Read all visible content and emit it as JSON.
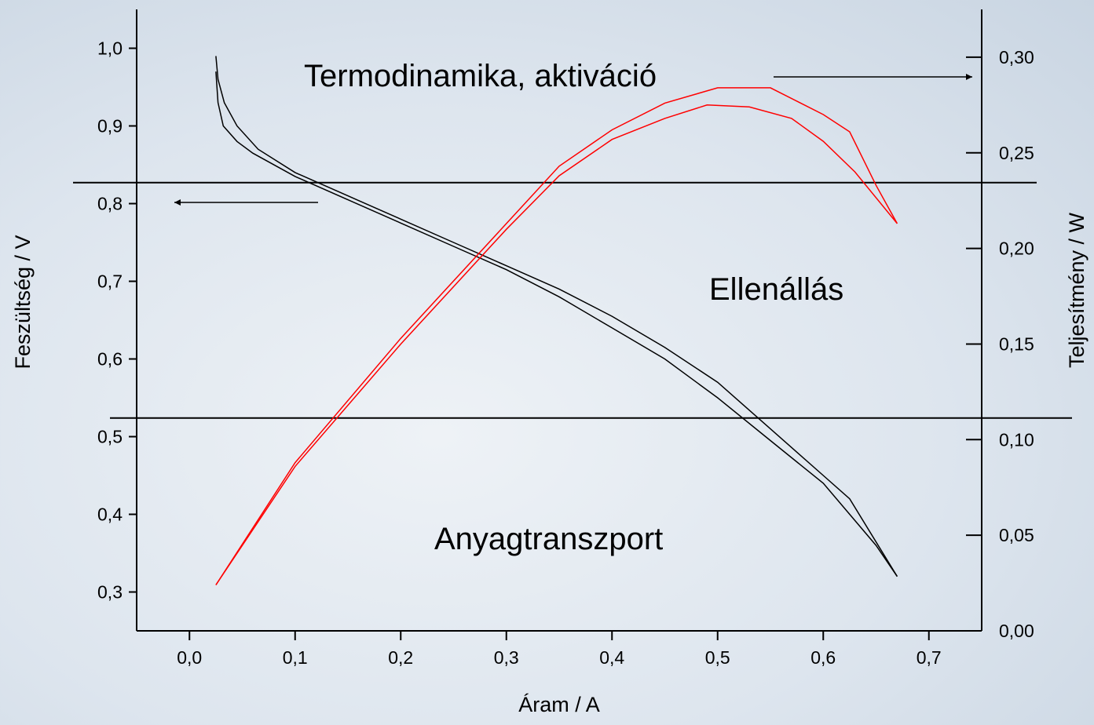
{
  "chart_data": {
    "type": "line",
    "xlabel": "Áram / A",
    "ylabel": "Feszültség / V",
    "y2label": "Teljesítmény / W",
    "xlim": [
      -0.05,
      0.75
    ],
    "ylim": [
      0.25,
      1.05
    ],
    "y2lim": [
      0,
      0.325
    ],
    "xticks": [
      {
        "value": 0.0,
        "label": "0,0"
      },
      {
        "value": 0.1,
        "label": "0,1"
      },
      {
        "value": 0.2,
        "label": "0,2"
      },
      {
        "value": 0.3,
        "label": "0,3"
      },
      {
        "value": 0.4,
        "label": "0,4"
      },
      {
        "value": 0.5,
        "label": "0,5"
      },
      {
        "value": 0.6,
        "label": "0,6"
      },
      {
        "value": 0.7,
        "label": "0,7"
      }
    ],
    "yticks": [
      {
        "value": 0.3,
        "label": "0,3"
      },
      {
        "value": 0.4,
        "label": "0,4"
      },
      {
        "value": 0.5,
        "label": "0,5"
      },
      {
        "value": 0.6,
        "label": "0,6"
      },
      {
        "value": 0.7,
        "label": "0,7"
      },
      {
        "value": 0.8,
        "label": "0,8"
      },
      {
        "value": 0.9,
        "label": "0,9"
      },
      {
        "value": 1.0,
        "label": "1,0"
      }
    ],
    "y2ticks": [
      {
        "value": 0.0,
        "label": "0,00"
      },
      {
        "value": 0.05,
        "label": "0,05"
      },
      {
        "value": 0.1,
        "label": "0,10"
      },
      {
        "value": 0.15,
        "label": "0,15"
      },
      {
        "value": 0.2,
        "label": "0,20"
      },
      {
        "value": 0.25,
        "label": "0,25"
      },
      {
        "value": 0.3,
        "label": "0,30"
      }
    ],
    "series": [
      {
        "color": "#000000",
        "x": [
          0.025,
          0.027,
          0.033,
          0.045,
          0.065,
          0.1,
          0.15,
          0.2,
          0.25,
          0.3,
          0.35,
          0.4,
          0.45,
          0.5,
          0.55,
          0.6,
          0.625,
          0.67
        ],
        "values": [
          0.99,
          0.96,
          0.93,
          0.9,
          0.87,
          0.84,
          0.81,
          0.78,
          0.75,
          0.72,
          0.69,
          0.655,
          0.615,
          0.57,
          0.51,
          0.45,
          0.42,
          0.32
        ]
      },
      {
        "color": "#000000",
        "x": [
          0.025,
          0.027,
          0.032,
          0.045,
          0.06,
          0.1,
          0.15,
          0.2,
          0.25,
          0.3,
          0.35,
          0.4,
          0.45,
          0.5,
          0.55,
          0.6,
          0.65,
          0.67
        ],
        "values": [
          0.97,
          0.93,
          0.9,
          0.88,
          0.865,
          0.835,
          0.805,
          0.775,
          0.745,
          0.715,
          0.68,
          0.64,
          0.6,
          0.55,
          0.495,
          0.44,
          0.36,
          0.32
        ]
      },
      {
        "color": "#ff0000",
        "axis": "y2",
        "x": [
          0.025,
          0.1,
          0.2,
          0.3,
          0.35,
          0.4,
          0.45,
          0.5,
          0.55,
          0.6,
          0.625,
          0.65,
          0.67
        ],
        "values": [
          0.024,
          0.088,
          0.153,
          0.213,
          0.243,
          0.262,
          0.276,
          0.284,
          0.284,
          0.27,
          0.261,
          0.233,
          0.213
        ]
      },
      {
        "color": "#ff0000",
        "axis": "y2",
        "x": [
          0.025,
          0.1,
          0.2,
          0.3,
          0.35,
          0.4,
          0.45,
          0.49,
          0.53,
          0.57,
          0.6,
          0.63,
          0.67
        ],
        "values": [
          0.024,
          0.086,
          0.15,
          0.21,
          0.238,
          0.257,
          0.268,
          0.275,
          0.274,
          0.268,
          0.256,
          0.24,
          0.213
        ]
      }
    ],
    "reference_lines": [
      0.827,
      0.524
    ],
    "annotations": [
      "Termodinamika, aktiváció",
      "Ellenállás",
      "Anyagtranszport"
    ]
  }
}
